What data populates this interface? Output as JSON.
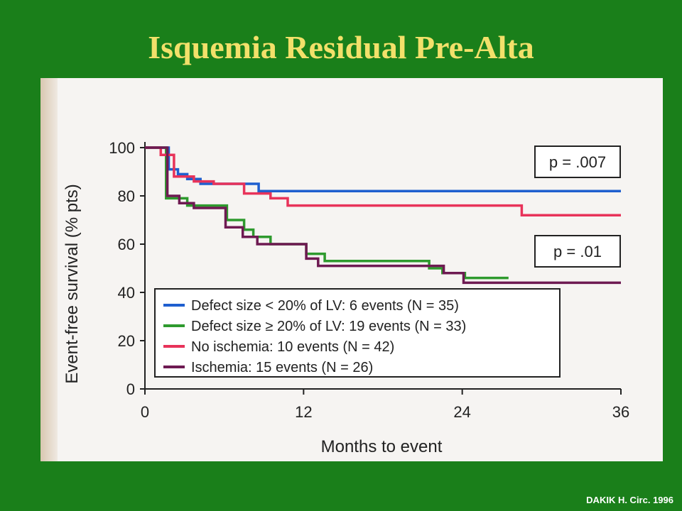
{
  "title": "Isquemia Residual Pre-Alta",
  "citation": "DAKIK H. Circ. 1996",
  "chart_data": {
    "type": "line",
    "xlabel": "Months to event",
    "ylabel": "Event-free survival (% pts)",
    "xlim": [
      0,
      36
    ],
    "ylim": [
      0,
      100
    ],
    "xticks": [
      "0",
      "12",
      "24",
      "36"
    ],
    "yticks": [
      "0",
      "20",
      "40",
      "60",
      "80",
      "100"
    ],
    "legend_position": "bottom-left",
    "annotations": [
      "p = .007",
      "p = .01"
    ],
    "series": [
      {
        "name": "Defect size < 20% of LV: 6 events (N = 35)",
        "color": "#1f5fcf",
        "x": [
          0,
          1.8,
          1.8,
          2.5,
          2.5,
          3.2,
          3.2,
          4.2,
          4.2,
          5.2,
          5.2,
          8.6,
          8.6,
          36
        ],
        "y": [
          100,
          100,
          91,
          91,
          89,
          89,
          87,
          87,
          85,
          85,
          85,
          85,
          82,
          82
        ]
      },
      {
        "name": "Defect size ≥ 20% of LV: 19 events (N = 33)",
        "color": "#2e9a2e",
        "x": [
          0,
          1.6,
          1.6,
          3.2,
          3.2,
          6.2,
          6.2,
          7.5,
          7.5,
          8.2,
          8.2,
          9.5,
          9.5,
          12.2,
          12.2,
          13.6,
          13.6,
          21.5,
          21.5,
          22.5,
          22.5,
          24.2,
          24.2,
          27.5
        ],
        "y": [
          100,
          100,
          79,
          79,
          76,
          76,
          70,
          70,
          66,
          66,
          63,
          63,
          60,
          60,
          56,
          56,
          53,
          53,
          50,
          50,
          48,
          48,
          46,
          46
        ]
      },
      {
        "name": "No ischemia: 10 events (N = 42)",
        "color": "#e8335a",
        "x": [
          0,
          1.2,
          1.2,
          2.2,
          2.2,
          3.7,
          3.7,
          5.2,
          5.2,
          7.5,
          7.5,
          9.5,
          9.5,
          10.8,
          10.8,
          28.5,
          28.5,
          36
        ],
        "y": [
          100,
          100,
          97,
          97,
          88,
          88,
          86,
          86,
          85,
          85,
          81,
          81,
          79,
          79,
          76,
          76,
          72,
          72
        ]
      },
      {
        "name": "Ischemia: 15 events (N = 26)",
        "color": "#6e1a52",
        "x": [
          0,
          1.7,
          1.7,
          2.6,
          2.6,
          3.7,
          3.7,
          6.1,
          6.1,
          7.4,
          7.4,
          8.5,
          8.5,
          12.2,
          12.2,
          13.1,
          13.1,
          22.6,
          22.6,
          24.1,
          24.1,
          36
        ],
        "y": [
          100,
          100,
          80,
          80,
          77,
          77,
          75,
          75,
          67,
          67,
          63,
          63,
          60,
          60,
          54,
          54,
          51,
          51,
          48,
          48,
          44,
          44
        ]
      }
    ]
  }
}
